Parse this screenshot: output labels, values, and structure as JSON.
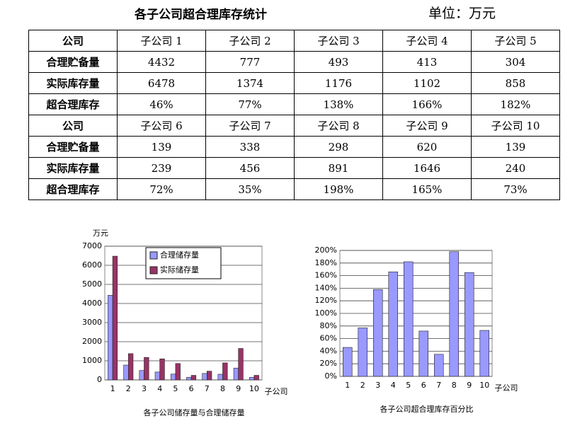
{
  "header": {
    "title": "各子公司超合理库存统计",
    "unit": "单位：万元"
  },
  "table": {
    "rows": [
      [
        "公司",
        "子公司 1",
        "子公司 2",
        "子公司 3",
        "子公司 4",
        "子公司 5"
      ],
      [
        "合理贮备量",
        "4432",
        "777",
        "493",
        "413",
        "304"
      ],
      [
        "实际库存量",
        "6478",
        "1374",
        "1176",
        "1102",
        "858"
      ],
      [
        "超合理库存",
        "46%",
        "77%",
        "138%",
        "166%",
        "182%"
      ],
      [
        "公司",
        "子公司 6",
        "子公司 7",
        "子公司 8",
        "子公司 9",
        "子公司 10"
      ],
      [
        "合理贮备量",
        "139",
        "338",
        "298",
        "620",
        "139"
      ],
      [
        "实际库存量",
        "239",
        "456",
        "891",
        "1646",
        "240"
      ],
      [
        "超合理库存",
        "72%",
        "35%",
        "198%",
        "165%",
        "73%"
      ]
    ]
  },
  "chart_data": [
    {
      "type": "bar",
      "title": "各子公司储存量与合理储存量",
      "y_label": "万元",
      "x_label": "子公司",
      "categories": [
        "1",
        "2",
        "3",
        "4",
        "5",
        "6",
        "7",
        "8",
        "9",
        "10"
      ],
      "series": [
        {
          "name": "合理储存量",
          "color": "#9999ff",
          "values": [
            4432,
            777,
            493,
            413,
            304,
            139,
            338,
            298,
            620,
            139
          ]
        },
        {
          "name": "实际储存量",
          "color": "#993366",
          "values": [
            6478,
            1374,
            1176,
            1102,
            858,
            239,
            456,
            891,
            1646,
            240
          ]
        }
      ],
      "ylim": [
        0,
        7000
      ],
      "yticks": [
        0,
        1000,
        2000,
        3000,
        4000,
        5000,
        6000,
        7000
      ],
      "grid": true,
      "legend": "upper center"
    },
    {
      "type": "bar",
      "title": "各子公司超合理库存百分比",
      "x_label": "子公司",
      "categories": [
        "1",
        "2",
        "3",
        "4",
        "5",
        "6",
        "7",
        "8",
        "9",
        "10"
      ],
      "series": [
        {
          "color": "#9999ff",
          "values": [
            46,
            77,
            138,
            166,
            182,
            72,
            35,
            198,
            165,
            73
          ]
        }
      ],
      "ylim": [
        0,
        200
      ],
      "yticks": [
        {
          "value": 0,
          "label": "0%"
        },
        {
          "value": 20,
          "label": "20%"
        },
        {
          "value": 40,
          "label": "40%"
        },
        {
          "value": 60,
          "label": "60%"
        },
        {
          "value": 80,
          "label": "80%"
        },
        {
          "value": 100,
          "label": "100%"
        },
        {
          "value": 120,
          "label": "120%"
        },
        {
          "value": 140,
          "label": "140%"
        },
        {
          "value": 160,
          "label": "160%"
        },
        {
          "value": 180,
          "label": "180%"
        },
        {
          "value": 200,
          "label": "200%"
        }
      ],
      "grid": true
    }
  ]
}
